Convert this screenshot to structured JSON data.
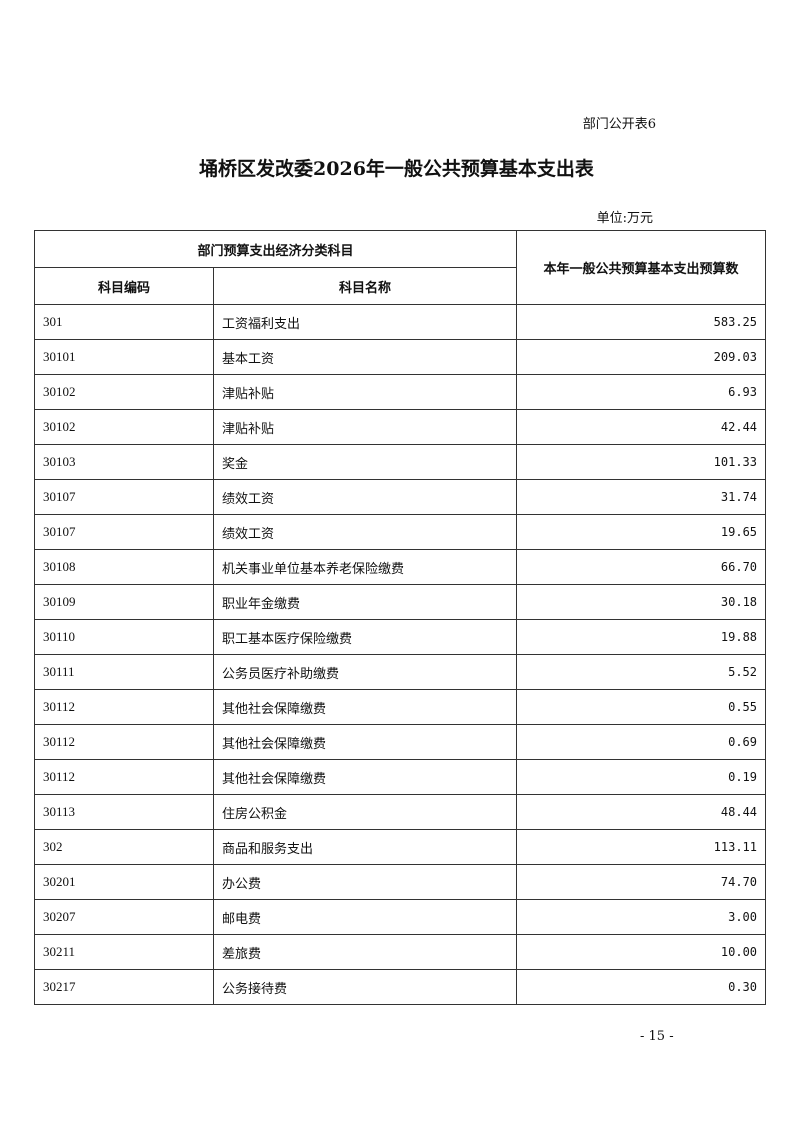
{
  "table_no": "部门公开表6",
  "title": "埇桥区发改委2026年一般公共预算基本支出表",
  "unit": "单位:万元",
  "header": {
    "group": "部门预算支出经济分类科目",
    "code": "科目编码",
    "name": "科目名称",
    "amount": "本年一般公共预算基本支出预算数"
  },
  "rows": [
    {
      "code": "301",
      "name": "工资福利支出",
      "amount": "583.25"
    },
    {
      "code": "30101",
      "name": "基本工资",
      "amount": "209.03"
    },
    {
      "code": "30102",
      "name": "津贴补贴",
      "amount": "6.93"
    },
    {
      "code": "30102",
      "name": "津贴补贴",
      "amount": "42.44"
    },
    {
      "code": "30103",
      "name": "奖金",
      "amount": "101.33"
    },
    {
      "code": "30107",
      "name": "绩效工资",
      "amount": "31.74"
    },
    {
      "code": "30107",
      "name": "绩效工资",
      "amount": "19.65"
    },
    {
      "code": "30108",
      "name": "机关事业单位基本养老保险缴费",
      "amount": "66.70"
    },
    {
      "code": "30109",
      "name": "职业年金缴费",
      "amount": "30.18"
    },
    {
      "code": "30110",
      "name": "职工基本医疗保险缴费",
      "amount": "19.88"
    },
    {
      "code": "30111",
      "name": "公务员医疗补助缴费",
      "amount": "5.52"
    },
    {
      "code": "30112",
      "name": "其他社会保障缴费",
      "amount": "0.55"
    },
    {
      "code": "30112",
      "name": "其他社会保障缴费",
      "amount": "0.69"
    },
    {
      "code": "30112",
      "name": "其他社会保障缴费",
      "amount": "0.19"
    },
    {
      "code": "30113",
      "name": "住房公积金",
      "amount": "48.44"
    },
    {
      "code": "302",
      "name": "商品和服务支出",
      "amount": "113.11"
    },
    {
      "code": "30201",
      "name": "办公费",
      "amount": "74.70"
    },
    {
      "code": "30207",
      "name": "邮电费",
      "amount": "3.00"
    },
    {
      "code": "30211",
      "name": "差旅费",
      "amount": "10.00"
    },
    {
      "code": "30217",
      "name": "公务接待费",
      "amount": "0.30"
    }
  ],
  "page_number": "- 15 -"
}
